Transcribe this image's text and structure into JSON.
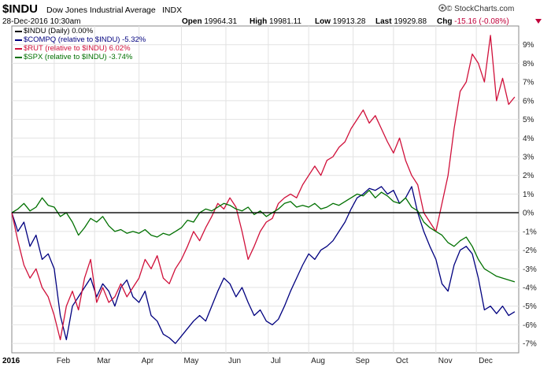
{
  "header": {
    "symbol": "$INDU",
    "company_name": "Dow Jones Industrial Average",
    "exchange": "INDX",
    "datetime": "28-Dec-2016 10:30am",
    "open_label": "Open",
    "open_value": "19964.31",
    "high_label": "High",
    "high_value": "19981.11",
    "low_label": "Low",
    "low_value": "19913.28",
    "last_label": "Last",
    "last_value": "19929.88",
    "chg_label": "Chg",
    "chg_value": "-15.16 (-0.08%)",
    "chg_arrow_icon": "triangle-down-icon",
    "chg_color": "#c0003a"
  },
  "branding": {
    "text": "© StockCharts.com",
    "icon": "stockcharts-logo-icon"
  },
  "legend": [
    {
      "label": "$INDU (Daily) 0.00%",
      "color": "#000000"
    },
    {
      "label": "$COMPQ (relative to $INDU) -5.32%",
      "color": "#00007f"
    },
    {
      "label": "$RUT (relative to $INDU) 6.02%",
      "color": "#d0103a"
    },
    {
      "label": "$SPX (relative to $INDU) -3.74%",
      "color": "#007000"
    }
  ],
  "chart_data": {
    "type": "line",
    "xlabel": "",
    "ylabel": "",
    "ylim": [
      -7.5,
      10
    ],
    "y_ticks": [
      "9%",
      "8%",
      "7%",
      "6%",
      "5%",
      "4%",
      "3%",
      "2%",
      "1%",
      "0%",
      "-1%",
      "-2%",
      "-3%",
      "-4%",
      "-5%",
      "-6%",
      "-7%"
    ],
    "y_tick_values": [
      9,
      8,
      7,
      6,
      5,
      4,
      3,
      2,
      1,
      0,
      -1,
      -2,
      -3,
      -4,
      -5,
      -6,
      -7
    ],
    "x_ticks": [
      "2016",
      "Feb",
      "Mar",
      "Apr",
      "May",
      "Jun",
      "Jul",
      "Aug",
      "Sep",
      "Oct",
      "Nov",
      "Dec"
    ],
    "x_tick_days": [
      0,
      21,
      41,
      63,
      84,
      106,
      127,
      147,
      169,
      189,
      210,
      230
    ],
    "x_range": [
      0,
      251
    ],
    "grid": true,
    "legend_position": "top-left",
    "series": [
      {
        "name": "$INDU (Daily) 0.00%",
        "color": "#000000",
        "x": [
          0,
          251
        ],
        "y": [
          0,
          0
        ]
      },
      {
        "name": "$COMPQ (relative to $INDU) -5.32%",
        "color": "#00007f",
        "x": [
          0,
          3,
          6,
          9,
          12,
          15,
          18,
          21,
          24,
          27,
          30,
          33,
          36,
          39,
          42,
          45,
          48,
          51,
          54,
          57,
          60,
          63,
          66,
          69,
          72,
          75,
          78,
          81,
          84,
          87,
          90,
          93,
          96,
          99,
          102,
          105,
          108,
          111,
          114,
          117,
          120,
          123,
          126,
          129,
          132,
          135,
          138,
          141,
          144,
          147,
          150,
          153,
          156,
          159,
          162,
          165,
          168,
          171,
          174,
          177,
          180,
          183,
          186,
          189,
          192,
          195,
          198,
          201,
          204,
          207,
          210,
          213,
          216,
          219,
          222,
          225,
          228,
          231,
          234,
          237,
          240,
          243,
          246,
          249
        ],
        "y": [
          0,
          -1.0,
          -0.5,
          -1.8,
          -1.2,
          -2.5,
          -2.2,
          -3.0,
          -5.5,
          -6.8,
          -5.0,
          -4.5,
          -4.0,
          -3.5,
          -4.5,
          -3.8,
          -4.2,
          -5.0,
          -4.0,
          -3.6,
          -4.5,
          -4.8,
          -4.2,
          -5.5,
          -5.8,
          -6.5,
          -6.7,
          -7.0,
          -6.6,
          -6.2,
          -5.8,
          -5.5,
          -5.8,
          -5.0,
          -4.2,
          -3.5,
          -3.8,
          -4.5,
          -4.0,
          -4.8,
          -5.5,
          -5.2,
          -5.8,
          -6.0,
          -5.7,
          -5.0,
          -4.2,
          -3.5,
          -2.8,
          -2.2,
          -2.5,
          -2.0,
          -1.8,
          -1.5,
          -1.0,
          -0.5,
          0.2,
          0.8,
          1.0,
          1.3,
          1.2,
          1.4,
          1.0,
          1.2,
          0.5,
          0.8,
          1.4,
          0.0,
          -1.0,
          -1.8,
          -2.5,
          -3.8,
          -4.2,
          -2.8,
          -2.0,
          -1.8,
          -2.2,
          -3.5,
          -5.2,
          -5.0,
          -5.4,
          -5.0,
          -5.5,
          -5.3
        ]
      },
      {
        "name": "$RUT (relative to $INDU) 6.02%",
        "color": "#d0103a",
        "x": [
          0,
          3,
          6,
          9,
          12,
          15,
          18,
          21,
          24,
          27,
          30,
          33,
          36,
          39,
          42,
          45,
          48,
          51,
          54,
          57,
          60,
          63,
          66,
          69,
          72,
          75,
          78,
          81,
          84,
          87,
          90,
          93,
          96,
          99,
          102,
          105,
          108,
          111,
          114,
          117,
          120,
          123,
          126,
          129,
          132,
          135,
          138,
          141,
          144,
          147,
          150,
          153,
          156,
          159,
          162,
          165,
          168,
          171,
          174,
          177,
          180,
          183,
          186,
          189,
          192,
          195,
          198,
          201,
          204,
          207,
          210,
          213,
          216,
          219,
          222,
          225,
          228,
          231,
          234,
          237,
          240,
          243,
          246,
          249
        ],
        "y": [
          0,
          -1.5,
          -2.8,
          -3.5,
          -3.0,
          -4.0,
          -4.5,
          -5.5,
          -6.8,
          -5.0,
          -4.2,
          -5.2,
          -3.5,
          -2.5,
          -4.8,
          -4.0,
          -4.8,
          -4.5,
          -3.8,
          -4.5,
          -4.0,
          -3.5,
          -2.5,
          -3.0,
          -2.3,
          -3.5,
          -3.8,
          -3.0,
          -2.5,
          -1.8,
          -1.0,
          -1.5,
          -0.8,
          -0.2,
          0.5,
          0.2,
          0.8,
          0.3,
          -1.0,
          -2.5,
          -1.8,
          -1.0,
          -0.5,
          -0.3,
          0.5,
          0.8,
          1.0,
          0.8,
          1.5,
          2.0,
          2.5,
          2.0,
          2.8,
          3.0,
          3.5,
          3.8,
          4.5,
          5.0,
          5.5,
          4.8,
          5.2,
          4.5,
          3.8,
          3.2,
          4.0,
          2.8,
          2.0,
          1.5,
          0.0,
          -0.5,
          -1.0,
          0.5,
          2.0,
          4.5,
          6.5,
          7.0,
          8.5,
          8.0,
          7.0,
          9.5,
          6.0,
          7.2,
          5.8,
          6.2
        ]
      },
      {
        "name": "$SPX (relative to $INDU) -3.74%",
        "color": "#007000",
        "x": [
          0,
          3,
          6,
          9,
          12,
          15,
          18,
          21,
          24,
          27,
          30,
          33,
          36,
          39,
          42,
          45,
          48,
          51,
          54,
          57,
          60,
          63,
          66,
          69,
          72,
          75,
          78,
          81,
          84,
          87,
          90,
          93,
          96,
          99,
          102,
          105,
          108,
          111,
          114,
          117,
          120,
          123,
          126,
          129,
          132,
          135,
          138,
          141,
          144,
          147,
          150,
          153,
          156,
          159,
          162,
          165,
          168,
          171,
          174,
          177,
          180,
          183,
          186,
          189,
          192,
          195,
          198,
          201,
          204,
          207,
          210,
          213,
          216,
          219,
          222,
          225,
          228,
          231,
          234,
          237,
          240,
          243,
          246,
          249
        ],
        "y": [
          0,
          0.2,
          0.5,
          0.1,
          0.3,
          0.8,
          0.4,
          0.3,
          -0.2,
          0.0,
          -0.5,
          -1.2,
          -0.8,
          -0.3,
          -0.5,
          -0.2,
          -0.7,
          -1.0,
          -0.9,
          -1.1,
          -1.0,
          -1.1,
          -0.9,
          -1.2,
          -1.3,
          -1.1,
          -1.2,
          -1.0,
          -0.8,
          -0.4,
          -0.5,
          0.0,
          0.2,
          0.1,
          0.3,
          0.5,
          0.4,
          0.2,
          0.1,
          0.3,
          -0.1,
          0.1,
          -0.2,
          0.0,
          0.2,
          0.5,
          0.6,
          0.3,
          0.4,
          0.3,
          0.5,
          0.2,
          0.3,
          0.5,
          0.4,
          0.6,
          0.8,
          1.0,
          0.9,
          1.2,
          0.8,
          1.1,
          0.9,
          0.6,
          0.5,
          0.8,
          0.3,
          0.1,
          -0.5,
          -0.8,
          -1.0,
          -1.2,
          -1.6,
          -1.8,
          -1.5,
          -1.3,
          -1.8,
          -2.5,
          -3.0,
          -3.2,
          -3.4,
          -3.5,
          -3.6,
          -3.7
        ]
      }
    ]
  }
}
